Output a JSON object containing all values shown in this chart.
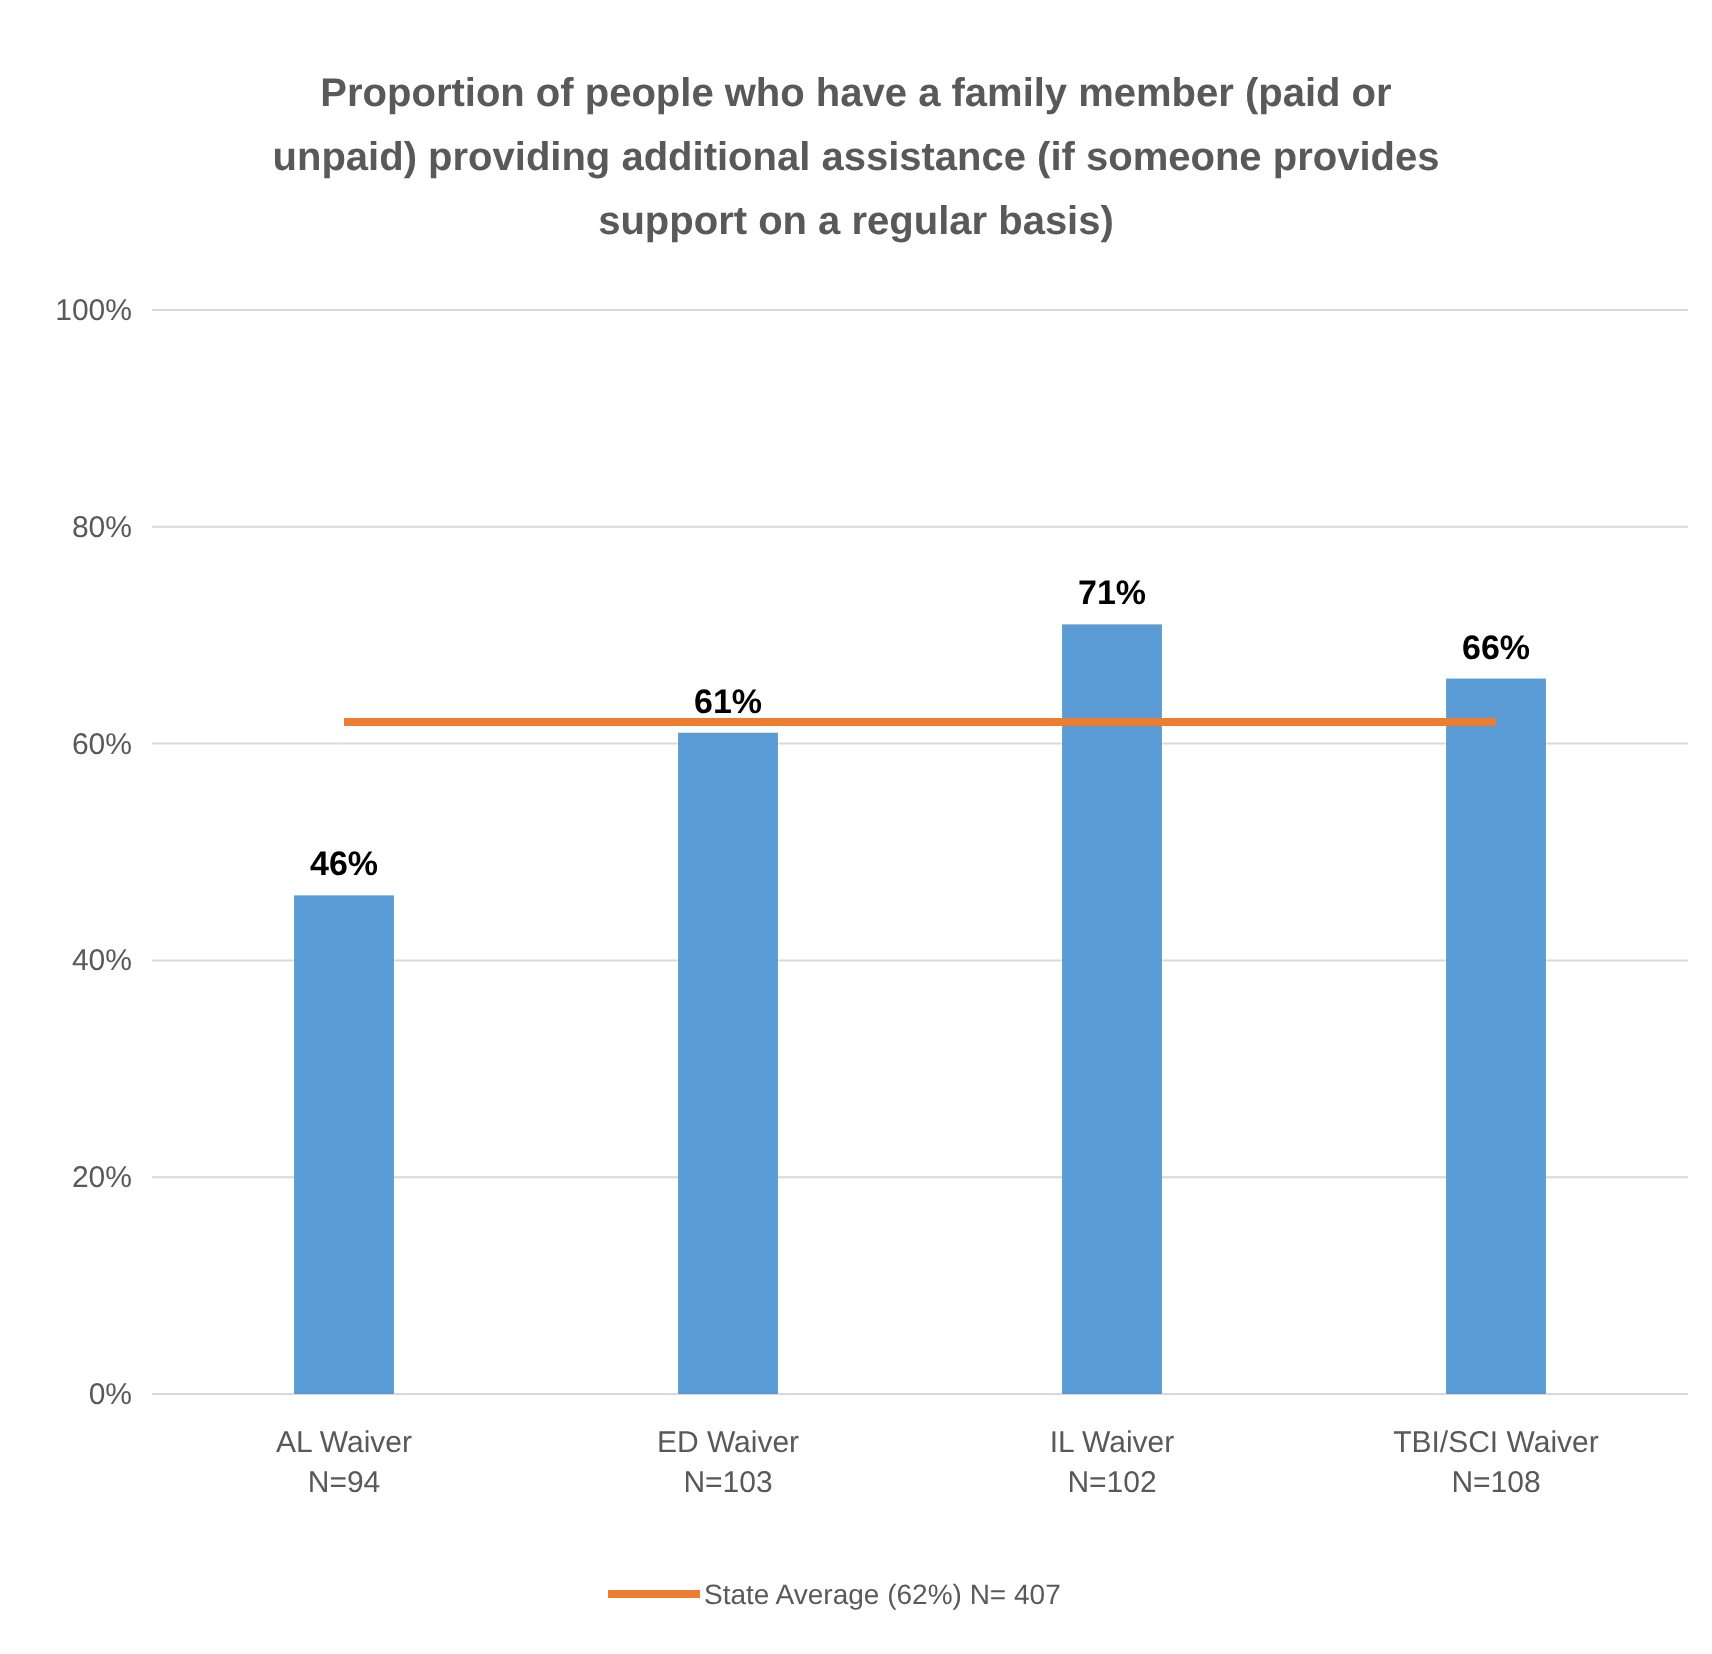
{
  "chart_data": {
    "type": "bar",
    "title": "Proportion of people who have a family member (paid or\nunpaid) providing additional assistance (if someone provides\nsupport on a regular basis)",
    "categories": [
      "AL Waiver\nN=94",
      "ED Waiver\nN=103",
      "IL Waiver\nN=102",
      "TBI/SCI Waiver\nN=108"
    ],
    "series": [
      {
        "color": "#5b9bd5",
        "values": [
          46,
          61,
          71,
          66
        ],
        "value_labels": [
          "46%",
          "61%",
          "71%",
          "66%"
        ]
      },
      {
        "type": "line",
        "name": "State Average (62%) N= 407",
        "color": "#ed7d31",
        "values": [
          62,
          62,
          62,
          62
        ],
        "marker": "none"
      }
    ],
    "ylim": [
      0,
      100
    ],
    "yticks": [
      {
        "value": 0,
        "label": "0%"
      },
      {
        "value": 20,
        "label": "20%"
      },
      {
        "value": 40,
        "label": "40%"
      },
      {
        "value": 60,
        "label": "60%"
      },
      {
        "value": 80,
        "label": "80%"
      },
      {
        "value": 100,
        "label": "100%"
      }
    ],
    "grid": "y",
    "legend": "bottom"
  }
}
